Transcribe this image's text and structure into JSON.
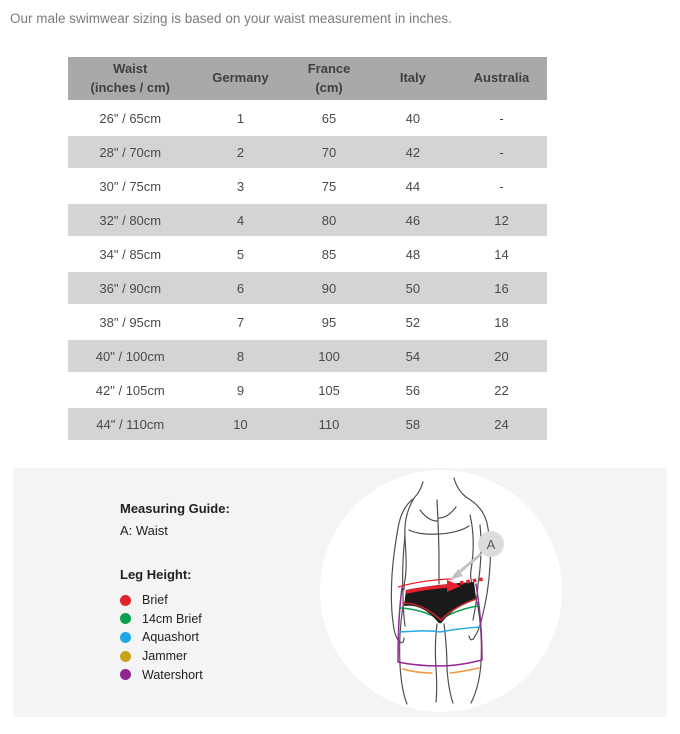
{
  "intro": "Our male swimwear sizing is based on your waist measurement in inches.",
  "colors": {
    "header_bg": "#a9a9a9",
    "header_text": "#3f3f3f",
    "row_alt_bg": "#d4d4d4",
    "table_text": "#4a4a4a",
    "intro_text": "#7b7b7b",
    "panel_bg": "#f4f4f4",
    "guide_text": "#1f1f1f"
  },
  "table": {
    "headers": [
      [
        "Waist",
        "(inches / cm)"
      ],
      [
        "Germany"
      ],
      [
        "France",
        "(cm)"
      ],
      [
        "Italy"
      ],
      [
        "Australia"
      ]
    ],
    "rows": [
      [
        "26\" / 65cm",
        "1",
        "65",
        "40",
        "-"
      ],
      [
        "28\" / 70cm",
        "2",
        "70",
        "42",
        "-"
      ],
      [
        "30\" / 75cm",
        "3",
        "75",
        "44",
        "-"
      ],
      [
        "32\" / 80cm",
        "4",
        "80",
        "46",
        "12"
      ],
      [
        "34\" / 85cm",
        "5",
        "85",
        "48",
        "14"
      ],
      [
        "36\" / 90cm",
        "6",
        "90",
        "50",
        "16"
      ],
      [
        "38\" / 95cm",
        "7",
        "95",
        "52",
        "18"
      ],
      [
        "40\" / 100cm",
        "8",
        "100",
        "54",
        "20"
      ],
      [
        "42\" / 105cm",
        "9",
        "105",
        "56",
        "22"
      ],
      [
        "44\" / 110cm",
        "10",
        "110",
        "58",
        "24"
      ]
    ]
  },
  "measuring_guide": {
    "title": "Measuring Guide:",
    "note": "A: Waist"
  },
  "leg_height": {
    "title": "Leg Height:",
    "items": [
      {
        "label": "Brief",
        "color": "#e0242a"
      },
      {
        "label": "14cm Brief",
        "color": "#0ba04e"
      },
      {
        "label": "Aquashort",
        "color": "#1ba9e5"
      },
      {
        "label": "Jammer",
        "color": "#c9a315"
      },
      {
        "label": "Watershort",
        "color": "#8f2690"
      }
    ]
  },
  "illustration": {
    "label": "A",
    "line_colors": {
      "brief": "#c1272d",
      "brief_14cm": "#0ba04e",
      "aquashort": "#29abe2",
      "jammer": "#f2963b",
      "watershort": "#92278f",
      "waist_arrow": "#e8212e",
      "figure": "#4f4f4f",
      "pointer": "#c2c2c2",
      "badge_bg": "#dcdcdc",
      "badge_text": "#5a5a5a"
    }
  }
}
